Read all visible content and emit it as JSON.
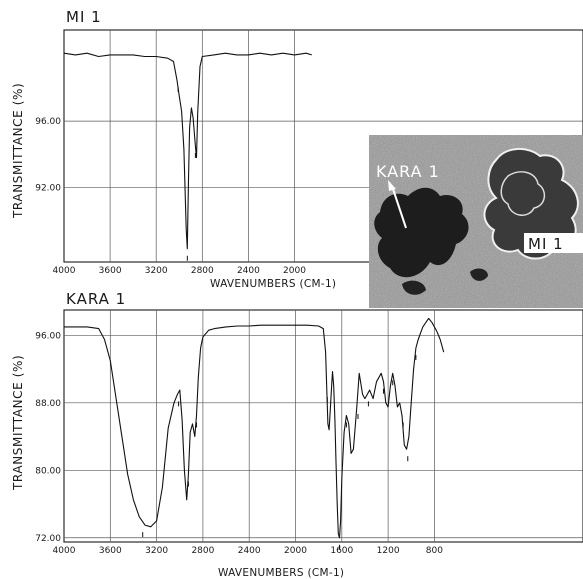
{
  "chart_data": [
    {
      "type": "line",
      "title": "MI 1",
      "xlabel": "WAVENUMBERS (CM-1)",
      "ylabel": "TRANSMITTANCE (%)",
      "x_reversed": true,
      "xlim": [
        4000,
        1850
      ],
      "ylim": [
        87.5,
        101.5
      ],
      "x_ticks": [
        "4000",
        "3600",
        "3200",
        "2800",
        "2400",
        "2000"
      ],
      "y_ticks": [
        "96.00",
        "92.00"
      ],
      "y_tick_values": [
        96,
        92
      ],
      "grid": true,
      "series": [
        {
          "x": [
            4000,
            3900,
            3800,
            3700,
            3600,
            3500,
            3400,
            3300,
            3200,
            3100,
            3050,
            3020,
            3000,
            2980,
            2960,
            2940,
            2930,
            2920,
            2910,
            2895,
            2880,
            2860,
            2850,
            2840,
            2820,
            2800,
            2700,
            2600,
            2500,
            2400,
            2300,
            2200,
            2100,
            2000,
            1900,
            1850
          ],
          "y": [
            100.1,
            100.0,
            100.1,
            99.9,
            100.0,
            100.0,
            100.0,
            99.9,
            99.9,
            99.8,
            99.6,
            98.5,
            97.5,
            96.6,
            94.3,
            89.5,
            88.3,
            92.5,
            95.6,
            96.8,
            96.2,
            94.5,
            93.8,
            96.5,
            99.3,
            99.9,
            100.0,
            100.1,
            100.0,
            100.0,
            100.1,
            100.0,
            100.1,
            100.0,
            100.1,
            100.0
          ]
        }
      ],
      "peak_marks": [
        3010,
        2930,
        2860
      ]
    },
    {
      "type": "line",
      "title": "KARA 1",
      "xlabel": "WAVENUMBERS (CM-1)",
      "ylabel": "TRANSMITTANCE (%)",
      "x_reversed": true,
      "xlim": [
        4000,
        720
      ],
      "ylim": [
        71.5,
        99
      ],
      "x_ticks": [
        "4000",
        "3600",
        "3200",
        "2800",
        "2400",
        "2000",
        "1600",
        "1200",
        "800"
      ],
      "y_ticks": [
        "96.00",
        "88.00",
        "80.00",
        "72.00"
      ],
      "y_tick_values": [
        96,
        88,
        80,
        72
      ],
      "grid": true,
      "series": [
        {
          "x": [
            4000,
            3800,
            3700,
            3650,
            3600,
            3550,
            3500,
            3450,
            3400,
            3350,
            3300,
            3250,
            3200,
            3150,
            3100,
            3050,
            3020,
            3000,
            2980,
            2960,
            2940,
            2925,
            2910,
            2890,
            2870,
            2855,
            2840,
            2820,
            2800,
            2750,
            2700,
            2600,
            2500,
            2400,
            2300,
            2200,
            2100,
            2000,
            1900,
            1800,
            1760,
            1740,
            1730,
            1720,
            1710,
            1700,
            1690,
            1680,
            1670,
            1660,
            1650,
            1640,
            1630,
            1620,
            1610,
            1600,
            1580,
            1560,
            1540,
            1520,
            1500,
            1470,
            1450,
            1420,
            1400,
            1380,
            1360,
            1330,
            1300,
            1260,
            1240,
            1220,
            1200,
            1180,
            1160,
            1140,
            1120,
            1100,
            1080,
            1060,
            1040,
            1020,
            1000,
            980,
            960,
            940,
            900,
            850,
            820,
            780,
            750,
            720
          ],
          "y": [
            97.0,
            97.0,
            96.8,
            95.5,
            93.0,
            88.5,
            84.0,
            79.5,
            76.5,
            74.5,
            73.5,
            73.3,
            74.0,
            78.0,
            85.0,
            88.0,
            89.0,
            89.5,
            86.0,
            80.0,
            76.5,
            79.5,
            84.5,
            85.5,
            84.0,
            86.5,
            91.0,
            94.5,
            95.8,
            96.6,
            96.8,
            97.0,
            97.1,
            97.1,
            97.2,
            97.2,
            97.2,
            97.2,
            97.2,
            97.1,
            96.8,
            94.0,
            89.5,
            85.5,
            84.8,
            87.0,
            89.5,
            91.7,
            90.0,
            86.0,
            81.0,
            76.0,
            72.5,
            72.0,
            74.0,
            79.0,
            84.5,
            86.5,
            85.5,
            82.0,
            82.5,
            87.5,
            91.5,
            89.0,
            88.5,
            89.0,
            89.5,
            88.5,
            90.5,
            91.5,
            90.5,
            88.0,
            87.5,
            90.0,
            91.5,
            90.0,
            87.5,
            88.0,
            86.5,
            83.0,
            82.5,
            84.0,
            88.0,
            92.0,
            94.5,
            95.5,
            97.0,
            98.0,
            97.5,
            96.5,
            95.5,
            94.0
          ]
        }
      ],
      "peak_marks": [
        3320,
        3010,
        2925,
        2855,
        1725,
        1620,
        1560,
        1460,
        1370,
        1240,
        1160,
        1070,
        1030,
        960
      ]
    }
  ],
  "inset": {
    "labels": [
      "KARA 1",
      "MI 1"
    ]
  }
}
